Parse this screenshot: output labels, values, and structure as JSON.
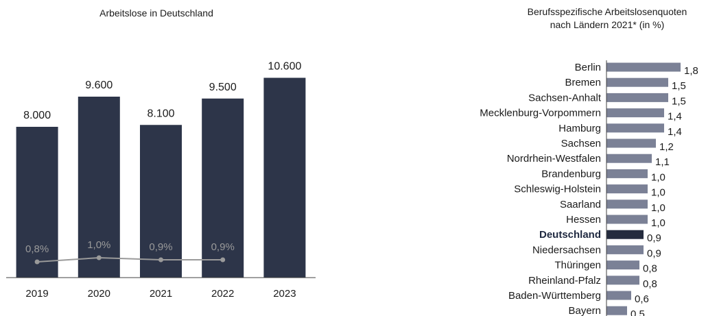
{
  "colors": {
    "bar_dark": "#2d3549",
    "bar_grey": "#7b8196",
    "bar_highlight": "#242b3e",
    "line_grey": "#9a9a9a",
    "rate_label_grey": "#b0b0b0"
  },
  "chart_data": [
    {
      "type": "bar",
      "title": "Arbeitslose in Deutschland",
      "categories": [
        "2019",
        "2020",
        "2021",
        "2022",
        "2023"
      ],
      "values": [
        8000,
        9600,
        8100,
        9500,
        10600
      ],
      "value_labels": [
        "8.000",
        "9.600",
        "8.100",
        "9.500",
        "10.600"
      ],
      "ylim": [
        0,
        14000
      ],
      "grid": false,
      "overlay_line": {
        "x": [
          "2019",
          "2020",
          "2021",
          "2022"
        ],
        "values": [
          0.8,
          1.0,
          0.9,
          0.9
        ],
        "value_labels": [
          "0,8%",
          "1,0%",
          "0,9%",
          "0,9%"
        ]
      }
    },
    {
      "type": "bar",
      "orientation": "horizontal",
      "title": "Berufsspezifische Arbeitslosenquoten nach Ländern 2021* (in %)",
      "title_lines": [
        "Berufsspezifische Arbeitslosenquoten",
        "nach Ländern 2021* (in %)"
      ],
      "categories": [
        "Berlin",
        "Bremen",
        "Sachsen-Anhalt",
        "Mecklenburg-Vorpommern",
        "Hamburg",
        "Sachsen",
        "Nordrhein-Westfalen",
        "Brandenburg",
        "Schleswig-Holstein",
        "Saarland",
        "Hessen",
        "Deutschland",
        "Niedersachsen",
        "Thüringen",
        "Rheinland-Pfalz",
        "Baden-Württemberg",
        "Bayern"
      ],
      "values": [
        1.8,
        1.5,
        1.5,
        1.4,
        1.4,
        1.2,
        1.1,
        1.0,
        1.0,
        1.0,
        1.0,
        0.9,
        0.9,
        0.8,
        0.8,
        0.6,
        0.5
      ],
      "value_labels": [
        "1,8",
        "1,5",
        "1,5",
        "1,4",
        "1,4",
        "1,2",
        "1,1",
        "1,0",
        "1,0",
        "1,0",
        "1,0",
        "0,9",
        "0,9",
        "0,8",
        "0,8",
        "0,6",
        "0,5"
      ],
      "highlight": "Deutschland",
      "xlim": [
        0,
        2.0
      ],
      "grid": false
    }
  ]
}
